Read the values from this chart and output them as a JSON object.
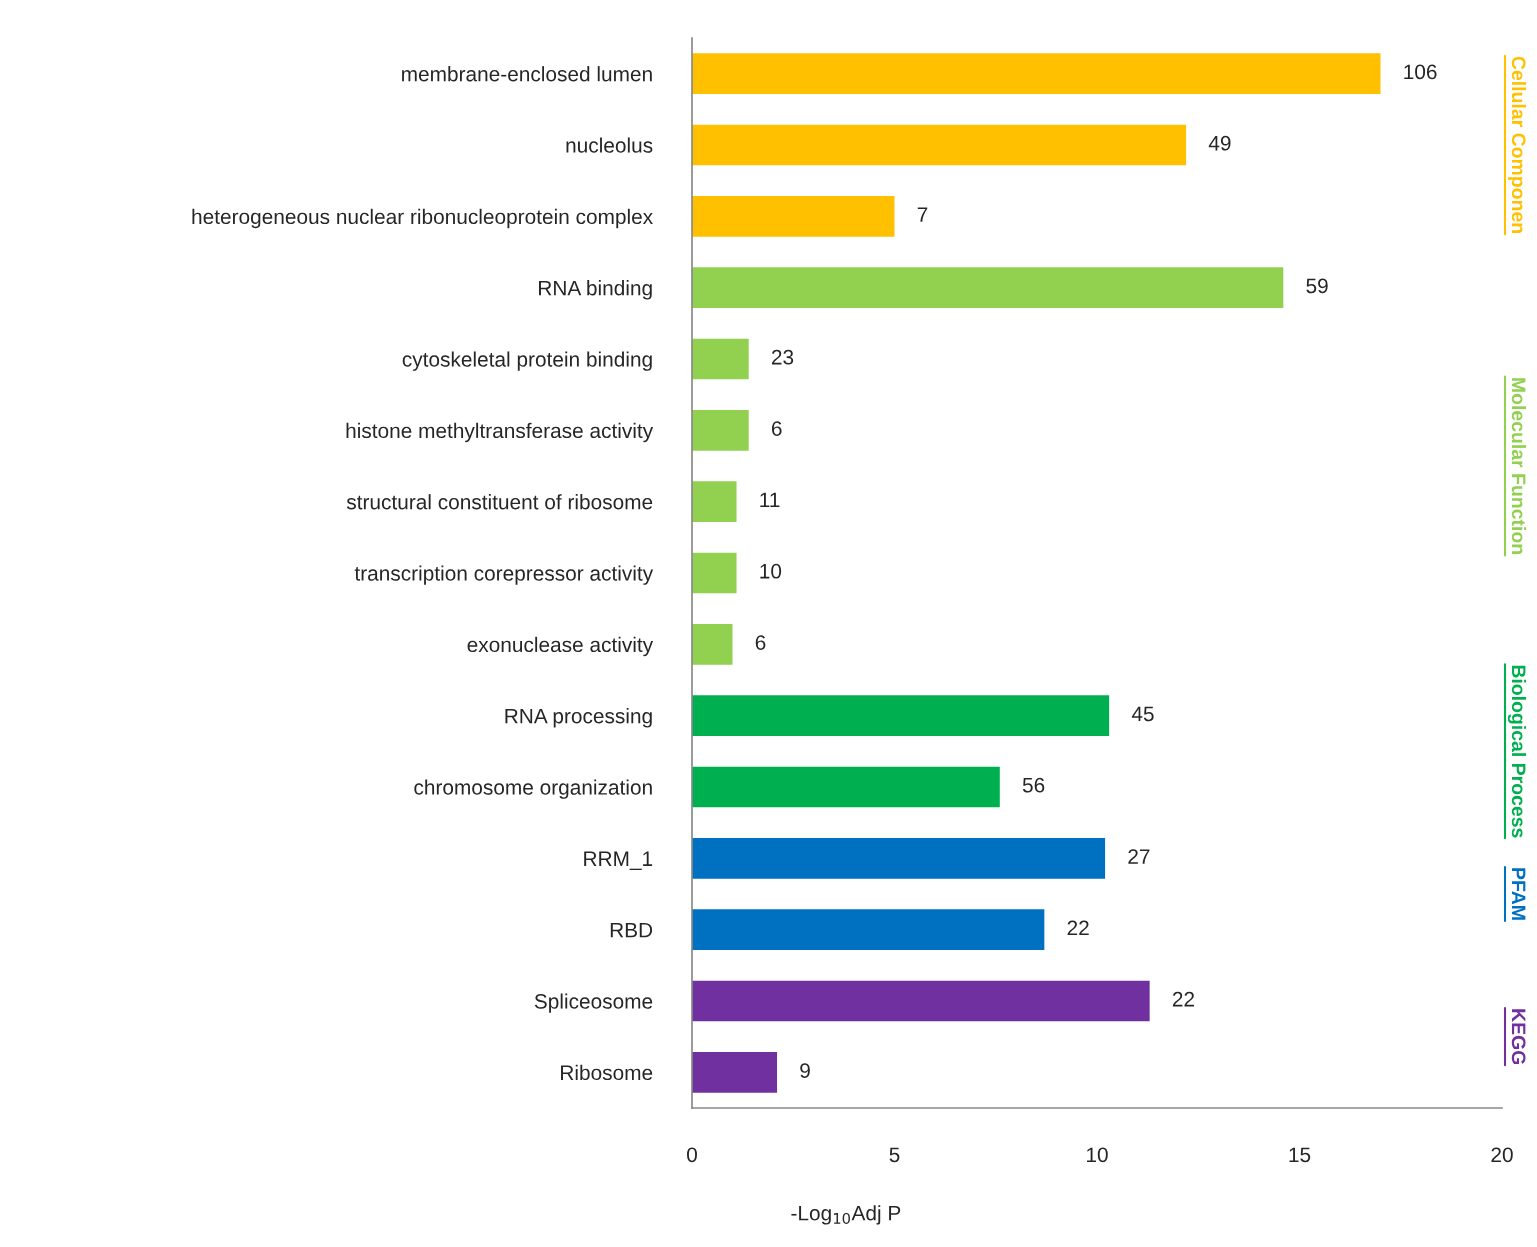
{
  "chart_data": {
    "type": "bar",
    "orientation": "horizontal",
    "xlabel": "-Log$_{10}$Adj P",
    "categories": [
      "membrane-enclosed lumen",
      "nucleolus",
      "heterogeneous nuclear ribonucleoprotein complex",
      "RNA binding",
      "cytoskeletal protein binding",
      "histone methyltransferase activity",
      "structural constituent of ribosome",
      "transcription corepressor activity",
      "exonuclease activity",
      "RNA processing",
      "chromosome organization",
      "RRM_1",
      "RBD",
      "Spliceosome",
      "Ribosome"
    ],
    "values": [
      17.0,
      12.2,
      5.0,
      14.6,
      1.4,
      1.4,
      1.1,
      1.1,
      1.0,
      10.3,
      7.6,
      10.2,
      8.7,
      11.3,
      2.1
    ],
    "colors": [
      "#ffc000",
      "#ffc000",
      "#ffc000",
      "#92d050",
      "#92d050",
      "#92d050",
      "#92d050",
      "#92d050",
      "#92d050",
      "#00b050",
      "#00b050",
      "#0070c0",
      "#0070c0",
      "#7030a0",
      "#7030a0"
    ],
    "xlim": [
      0,
      20
    ],
    "xticks": [
      0,
      5,
      10,
      15,
      20
    ],
    "grid": false,
    "legend": false,
    "annotations": [
      "Cellular Componen",
      "Molecular Function",
      "Biological Process",
      "PFAM",
      "KEGG",
      {
        "text": "106",
        "x": 17.0,
        "y": "membrane-enclosed lumen"
      },
      {
        "text": "49",
        "x": 12.2,
        "y": "nucleolus"
      },
      {
        "text": "7",
        "x": 5.0,
        "y": "heterogeneous nuclear ribonucleoprotein complex"
      },
      {
        "text": "59",
        "x": 14.6,
        "y": "RNA binding"
      },
      {
        "text": "23",
        "x": 1.4,
        "y": "cytoskeletal protein binding"
      },
      {
        "text": "6",
        "x": 1.4,
        "y": "histone methyltransferase activity"
      },
      {
        "text": "11",
        "x": 1.1,
        "y": "structural constituent of ribosome"
      },
      {
        "text": "10",
        "x": 1.1,
        "y": "transcription corepressor activity"
      },
      {
        "text": "6",
        "x": 1.0,
        "y": "exonuclease activity"
      },
      {
        "text": "45",
        "x": 10.3,
        "y": "RNA processing"
      },
      {
        "text": "56",
        "x": 7.6,
        "y": "chromosome organization"
      },
      {
        "text": "27",
        "x": 10.2,
        "y": "RRM_1"
      },
      {
        "text": "22",
        "x": 8.7,
        "y": "RBD"
      },
      {
        "text": "22",
        "x": 11.3,
        "y": "Spliceosome"
      },
      {
        "text": "9",
        "x": 2.1,
        "y": "Ribosome"
      }
    ]
  }
}
